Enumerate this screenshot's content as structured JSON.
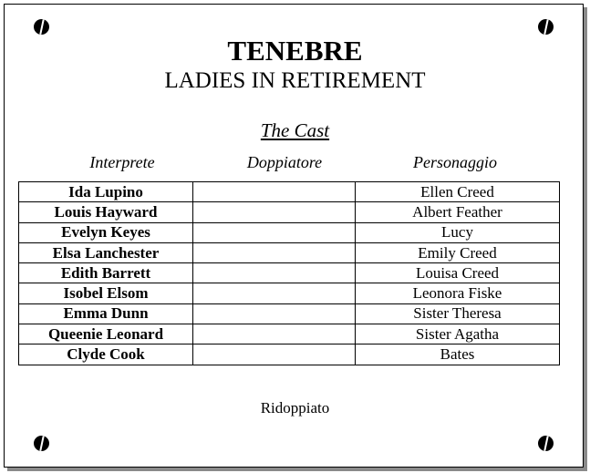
{
  "title": "TENEBRE",
  "subtitle": "LADIES IN RETIREMENT",
  "cast_heading": "The Cast",
  "headers": {
    "interprete": "Interprete",
    "doppiatore": "Doppiatore",
    "personaggio": "Personaggio"
  },
  "rows": [
    {
      "interprete": "Ida Lupino",
      "doppiatore": "",
      "personaggio": "Ellen Creed"
    },
    {
      "interprete": "Louis Hayward",
      "doppiatore": "",
      "personaggio": "Albert Feather"
    },
    {
      "interprete": "Evelyn Keyes",
      "doppiatore": "",
      "personaggio": "Lucy"
    },
    {
      "interprete": "Elsa Lanchester",
      "doppiatore": "",
      "personaggio": "Emily Creed"
    },
    {
      "interprete": "Edith Barrett",
      "doppiatore": "",
      "personaggio": "Louisa Creed"
    },
    {
      "interprete": "Isobel Elsom",
      "doppiatore": "",
      "personaggio": "Leonora Fiske"
    },
    {
      "interprete": "Emma Dunn",
      "doppiatore": "",
      "personaggio": "Sister Theresa"
    },
    {
      "interprete": "Queenie Leonard",
      "doppiatore": "",
      "personaggio": "Sister Agatha"
    },
    {
      "interprete": "Clyde Cook",
      "doppiatore": "",
      "personaggio": "Bates"
    }
  ],
  "footer": "Ridoppiato"
}
